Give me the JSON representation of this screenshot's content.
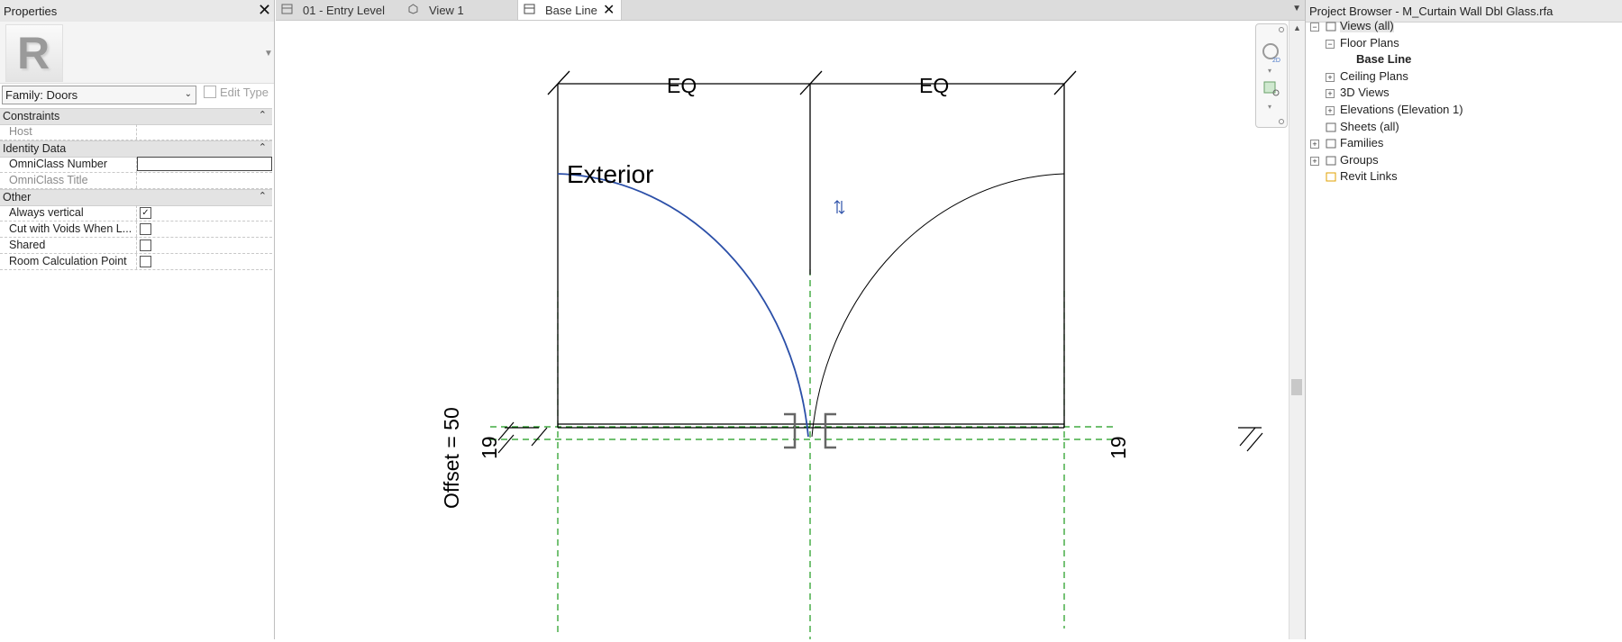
{
  "properties": {
    "title": "Properties",
    "family_select": "Family: Doors",
    "edit_type": "Edit Type",
    "sections": [
      {
        "label": "Constraints",
        "rows": [
          {
            "name": "Host",
            "kind": "text",
            "value": ""
          }
        ]
      },
      {
        "label": "Identity Data",
        "rows": [
          {
            "name": "OmniClass Number",
            "kind": "input",
            "value": ""
          },
          {
            "name": "OmniClass Title",
            "kind": "text",
            "value": ""
          }
        ]
      },
      {
        "label": "Other",
        "rows": [
          {
            "name": "Always vertical",
            "kind": "checkbox",
            "checked": true
          },
          {
            "name": "Cut with Voids When L...",
            "kind": "checkbox",
            "checked": false
          },
          {
            "name": "Shared",
            "kind": "checkbox",
            "checked": false
          },
          {
            "name": "Room Calculation Point",
            "kind": "checkbox",
            "checked": false
          }
        ]
      }
    ]
  },
  "tabs": [
    {
      "label": "01 - Entry Level",
      "icon": "floor-plan-icon",
      "active": false
    },
    {
      "label": "View 1",
      "icon": "3d-view-icon",
      "active": false
    },
    {
      "label": "Base Line",
      "icon": "floor-plan-icon",
      "active": true
    }
  ],
  "drawing": {
    "dim_label_left": "EQ",
    "dim_label_right": "EQ",
    "exterior_label": "Exterior",
    "offset_label": "Offset = 50",
    "dim_left_small": "19",
    "dim_right_small": "19",
    "colors": {
      "selected": "#2b4fa8",
      "reference": "#1a9a1a",
      "line": "#000000"
    }
  },
  "browser": {
    "title": "Project Browser - M_Curtain Wall Dbl Glass.rfa",
    "items": [
      {
        "label": "Views (all)",
        "level": 0,
        "expander": "-",
        "icon": "views-icon",
        "selected": true
      },
      {
        "label": "Floor Plans",
        "level": 1,
        "expander": "-"
      },
      {
        "label": "Base Line",
        "level": 2,
        "bold": true
      },
      {
        "label": "Ceiling Plans",
        "level": 1,
        "expander": "+"
      },
      {
        "label": "3D Views",
        "level": 1,
        "expander": "+"
      },
      {
        "label": "Elevations (Elevation 1)",
        "level": 1,
        "expander": "+"
      },
      {
        "label": "Sheets (all)",
        "level": 0,
        "icon": "sheets-icon"
      },
      {
        "label": "Families",
        "level": 0,
        "expander": "+",
        "icon": "families-icon"
      },
      {
        "label": "Groups",
        "level": 0,
        "expander": "+",
        "icon": "groups-icon"
      },
      {
        "label": "Revit Links",
        "level": 0,
        "icon": "revit-links-icon"
      }
    ]
  }
}
